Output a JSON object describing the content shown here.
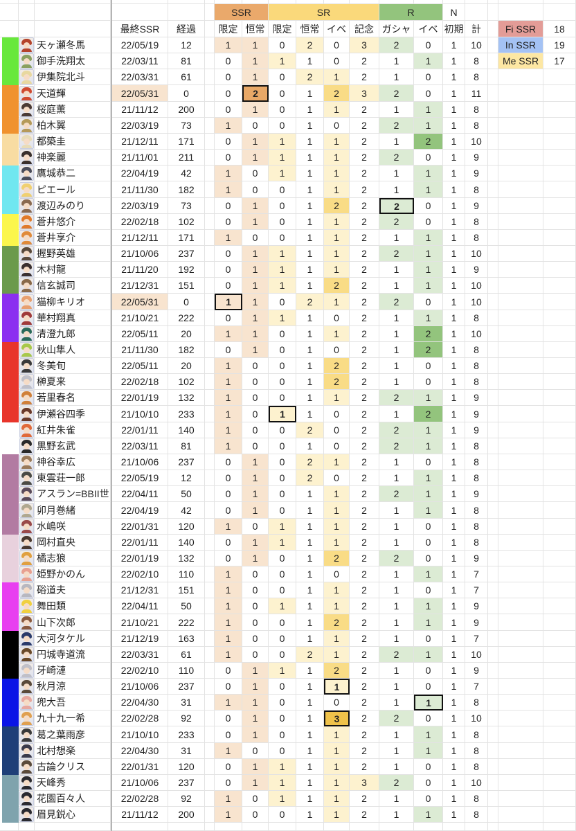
{
  "header": {
    "groups": [
      {
        "label": "SSR",
        "color": "#eaa96b"
      },
      {
        "label": "SR",
        "color": "#fad97b"
      },
      {
        "label": "R",
        "color": "#93c47d"
      },
      {
        "label": "N",
        "color": "#ffffff"
      }
    ],
    "columns": [
      "最終SSR",
      "経過",
      "限定",
      "恒常",
      "限定",
      "恒常",
      "イベ",
      "記念",
      "ガシャ",
      "イベ",
      "初期",
      "計"
    ]
  },
  "legend": [
    {
      "label": "Fi SSR",
      "value": "18",
      "color": "#e39c97"
    },
    {
      "label": "In SSR",
      "value": "19",
      "color": "#a4c2f4"
    },
    {
      "label": "Me SSR",
      "value": "17",
      "color": "#fde7a3"
    }
  ],
  "colors": {
    "ssr_1": "#f8e4cf",
    "ssr_2": "#e8a867",
    "sr_1": "#fdf2cf",
    "sr_2": "#f9dc86",
    "sr_3": "#efc24a",
    "r_1": "#dcebd4",
    "r_2": "#93c47d",
    "recent_date": "#f8e4cf"
  },
  "rows": [
    {
      "name": "天ヶ瀬冬馬",
      "date": "22/05/19",
      "days": "12",
      "values": [
        "1",
        "1",
        "0",
        "2",
        "0",
        "3",
        "2",
        "0",
        "1",
        "10"
      ],
      "color": "#68e83c",
      "hair": "#b5442c"
    },
    {
      "name": "御手洗翔太",
      "date": "22/03/11",
      "days": "81",
      "values": [
        "0",
        "1",
        "1",
        "1",
        "0",
        "2",
        "1",
        "1",
        "1",
        "8"
      ],
      "color": "#68e83c",
      "hair": "#8aa060"
    },
    {
      "name": "伊集院北斗",
      "date": "22/03/31",
      "days": "61",
      "values": [
        "0",
        "1",
        "0",
        "2",
        "1",
        "2",
        "1",
        "0",
        "1",
        "8"
      ],
      "color": "#68e83c",
      "hair": "#e8d8a0"
    },
    {
      "name": "天道輝",
      "date": "22/05/31",
      "days": "0",
      "values": [
        "0",
        "2",
        "0",
        "1",
        "2",
        "3",
        "2",
        "0",
        "1",
        "11"
      ],
      "color": "#f0922f",
      "hair": "#d04a30",
      "boxed": 1,
      "recent": true
    },
    {
      "name": "桜庭薫",
      "date": "21/11/12",
      "days": "200",
      "values": [
        "0",
        "1",
        "0",
        "1",
        "1",
        "2",
        "1",
        "1",
        "1",
        "8"
      ],
      "color": "#f0922f",
      "hair": "#4a3a34"
    },
    {
      "name": "柏木翼",
      "date": "22/03/19",
      "days": "73",
      "values": [
        "1",
        "0",
        "0",
        "1",
        "0",
        "2",
        "2",
        "1",
        "1",
        "8"
      ],
      "color": "#f0922f",
      "hair": "#b59a5a"
    },
    {
      "name": "都築圭",
      "date": "21/12/11",
      "days": "171",
      "values": [
        "0",
        "1",
        "1",
        "1",
        "1",
        "2",
        "1",
        "2",
        "1",
        "10"
      ],
      "color": "#f8dca2",
      "hair": "#e8dcb8"
    },
    {
      "name": "神楽麗",
      "date": "21/11/01",
      "days": "211",
      "values": [
        "0",
        "1",
        "1",
        "1",
        "1",
        "2",
        "2",
        "0",
        "1",
        "9"
      ],
      "color": "#f8dca2",
      "hair": "#3a302c"
    },
    {
      "name": "鷹城恭二",
      "date": "22/04/19",
      "days": "42",
      "values": [
        "1",
        "0",
        "1",
        "1",
        "1",
        "2",
        "1",
        "1",
        "1",
        "9"
      ],
      "color": "#70e7f0",
      "hair": "#4a4c5a"
    },
    {
      "name": "ピエール",
      "date": "21/11/30",
      "days": "182",
      "values": [
        "1",
        "0",
        "0",
        "1",
        "1",
        "2",
        "1",
        "1",
        "1",
        "8"
      ],
      "color": "#70e7f0",
      "hair": "#f0d070"
    },
    {
      "name": "渡辺みのり",
      "date": "22/03/19",
      "days": "73",
      "values": [
        "0",
        "1",
        "0",
        "1",
        "2",
        "2",
        "2",
        "0",
        "1",
        "9"
      ],
      "color": "#70e7f0",
      "hair": "#8a6a50",
      "boxed": 6
    },
    {
      "name": "蒼井悠介",
      "date": "22/02/18",
      "days": "102",
      "values": [
        "0",
        "1",
        "0",
        "1",
        "1",
        "2",
        "2",
        "0",
        "1",
        "8"
      ],
      "color": "#fbf64c",
      "hair": "#e07a2a"
    },
    {
      "name": "蒼井享介",
      "date": "21/12/11",
      "days": "171",
      "values": [
        "1",
        "0",
        "0",
        "1",
        "1",
        "2",
        "1",
        "1",
        "1",
        "8"
      ],
      "color": "#fbf64c",
      "hair": "#e08a3a"
    },
    {
      "name": "握野英雄",
      "date": "21/10/06",
      "days": "237",
      "values": [
        "0",
        "1",
        "1",
        "1",
        "1",
        "2",
        "2",
        "1",
        "1",
        "10"
      ],
      "color": "#6b9a4c",
      "hair": "#5a4a3c"
    },
    {
      "name": "木村龍",
      "date": "21/11/20",
      "days": "192",
      "values": [
        "0",
        "1",
        "1",
        "1",
        "1",
        "2",
        "1",
        "1",
        "1",
        "9"
      ],
      "color": "#6b9a4c",
      "hair": "#3a3030"
    },
    {
      "name": "信玄誠司",
      "date": "21/12/31",
      "days": "151",
      "values": [
        "0",
        "1",
        "1",
        "1",
        "2",
        "2",
        "1",
        "1",
        "1",
        "10"
      ],
      "color": "#6b9a4c",
      "hair": "#8a6a4a"
    },
    {
      "name": "猫柳キリオ",
      "date": "22/05/31",
      "days": "0",
      "values": [
        "1",
        "1",
        "0",
        "2",
        "1",
        "2",
        "2",
        "0",
        "1",
        "10"
      ],
      "color": "#8b2ff0",
      "hair": "#e8a070",
      "boxed": 0,
      "recent": true
    },
    {
      "name": "華村翔真",
      "date": "21/10/21",
      "days": "222",
      "values": [
        "0",
        "1",
        "1",
        "1",
        "0",
        "2",
        "1",
        "1",
        "1",
        "8"
      ],
      "color": "#8b2ff0",
      "hair": "#a03a3a"
    },
    {
      "name": "清澄九郎",
      "date": "22/05/11",
      "days": "20",
      "values": [
        "1",
        "1",
        "0",
        "1",
        "1",
        "2",
        "1",
        "2",
        "1",
        "10"
      ],
      "color": "#8b2ff0",
      "hair": "#2a6a5a"
    },
    {
      "name": "秋山隼人",
      "date": "21/11/30",
      "days": "182",
      "values": [
        "0",
        "1",
        "0",
        "1",
        "0",
        "2",
        "1",
        "2",
        "1",
        "8"
      ],
      "color": "#e8352b",
      "hair": "#a8c84a"
    },
    {
      "name": "冬美旬",
      "date": "22/05/11",
      "days": "20",
      "values": [
        "1",
        "0",
        "0",
        "1",
        "2",
        "2",
        "1",
        "0",
        "1",
        "8"
      ],
      "color": "#e8352b",
      "hair": "#3a3a3a"
    },
    {
      "name": "榊夏来",
      "date": "22/02/18",
      "days": "102",
      "values": [
        "1",
        "0",
        "0",
        "1",
        "2",
        "2",
        "1",
        "0",
        "1",
        "8"
      ],
      "color": "#e8352b",
      "hair": "#c0c0c8"
    },
    {
      "name": "若里春名",
      "date": "22/01/19",
      "days": "132",
      "values": [
        "1",
        "0",
        "0",
        "1",
        "1",
        "2",
        "2",
        "1",
        "1",
        "9"
      ],
      "color": "#e8352b",
      "hair": "#d0803a"
    },
    {
      "name": "伊瀬谷四季",
      "date": "21/10/10",
      "days": "233",
      "values": [
        "1",
        "0",
        "1",
        "1",
        "0",
        "2",
        "1",
        "2",
        "1",
        "9"
      ],
      "color": "#e8352b",
      "hair": "#6a3a2a",
      "boxed": 2
    },
    {
      "name": "紅井朱雀",
      "date": "22/01/11",
      "days": "140",
      "values": [
        "1",
        "0",
        "0",
        "2",
        "0",
        "2",
        "2",
        "1",
        "1",
        "9"
      ],
      "color": "#ffffff",
      "hair": "#e06a3a"
    },
    {
      "name": "黒野玄武",
      "date": "22/03/11",
      "days": "81",
      "values": [
        "1",
        "0",
        "0",
        "1",
        "0",
        "2",
        "2",
        "1",
        "1",
        "8"
      ],
      "color": "#ffffff",
      "hair": "#2a2a2a"
    },
    {
      "name": "神谷幸広",
      "date": "21/10/06",
      "days": "237",
      "values": [
        "0",
        "1",
        "0",
        "2",
        "1",
        "2",
        "1",
        "0",
        "1",
        "8"
      ],
      "color": "#b27ba2",
      "hair": "#9a7a5a"
    },
    {
      "name": "東雲荘一郎",
      "date": "22/05/19",
      "days": "12",
      "values": [
        "0",
        "1",
        "0",
        "2",
        "0",
        "2",
        "1",
        "1",
        "1",
        "8"
      ],
      "color": "#b27ba2",
      "hair": "#4a4a44"
    },
    {
      "name": "アスラン=BBII世",
      "date": "22/04/11",
      "days": "50",
      "values": [
        "0",
        "1",
        "0",
        "1",
        "1",
        "2",
        "2",
        "1",
        "1",
        "9"
      ],
      "color": "#b27ba2",
      "hair": "#5a4a5a"
    },
    {
      "name": "卯月巻緒",
      "date": "22/04/19",
      "days": "42",
      "values": [
        "0",
        "1",
        "0",
        "1",
        "1",
        "2",
        "1",
        "1",
        "1",
        "8"
      ],
      "color": "#b27ba2",
      "hair": "#b0a890"
    },
    {
      "name": "水嶋咲",
      "date": "22/01/31",
      "days": "120",
      "values": [
        "1",
        "0",
        "1",
        "1",
        "1",
        "2",
        "1",
        "0",
        "1",
        "8"
      ],
      "color": "#b27ba2",
      "hair": "#9a4a4a"
    },
    {
      "name": "岡村直央",
      "date": "22/01/11",
      "days": "140",
      "values": [
        "0",
        "1",
        "1",
        "1",
        "1",
        "2",
        "1",
        "0",
        "1",
        "8"
      ],
      "color": "#e8d1dd",
      "hair": "#4a3a30"
    },
    {
      "name": "橘志狼",
      "date": "22/01/19",
      "days": "132",
      "values": [
        "0",
        "1",
        "0",
        "1",
        "2",
        "2",
        "2",
        "0",
        "1",
        "9"
      ],
      "color": "#e8d1dd",
      "hair": "#e0a040"
    },
    {
      "name": "姫野かのん",
      "date": "22/02/10",
      "days": "110",
      "values": [
        "1",
        "0",
        "0",
        "1",
        "0",
        "2",
        "1",
        "1",
        "1",
        "7"
      ],
      "color": "#e8d1dd",
      "hair": "#e8a090"
    },
    {
      "name": "硲道夫",
      "date": "21/12/31",
      "days": "151",
      "values": [
        "1",
        "0",
        "0",
        "1",
        "1",
        "2",
        "1",
        "0",
        "1",
        "7"
      ],
      "color": "#e83ff0",
      "hair": "#b8b8c0"
    },
    {
      "name": "舞田類",
      "date": "22/04/11",
      "days": "50",
      "values": [
        "1",
        "0",
        "1",
        "1",
        "1",
        "2",
        "1",
        "1",
        "1",
        "9"
      ],
      "color": "#e83ff0",
      "hair": "#f0d040"
    },
    {
      "name": "山下次郎",
      "date": "21/10/21",
      "days": "222",
      "values": [
        "1",
        "0",
        "0",
        "1",
        "2",
        "2",
        "1",
        "1",
        "1",
        "9"
      ],
      "color": "#e83ff0",
      "hair": "#8a5a40"
    },
    {
      "name": "大河タケル",
      "date": "21/12/19",
      "days": "163",
      "values": [
        "1",
        "0",
        "0",
        "1",
        "1",
        "2",
        "1",
        "0",
        "1",
        "7"
      ],
      "color": "#000000",
      "hair": "#2a3a6a"
    },
    {
      "name": "円城寺道流",
      "date": "22/03/31",
      "days": "61",
      "values": [
        "1",
        "0",
        "0",
        "2",
        "1",
        "2",
        "2",
        "1",
        "1",
        "10"
      ],
      "color": "#000000",
      "hair": "#6a4a2a"
    },
    {
      "name": "牙崎漣",
      "date": "22/02/10",
      "days": "110",
      "values": [
        "0",
        "1",
        "1",
        "1",
        "2",
        "2",
        "1",
        "0",
        "1",
        "9"
      ],
      "color": "#000000",
      "hair": "#c0c0c8"
    },
    {
      "name": "秋月涼",
      "date": "21/10/06",
      "days": "237",
      "values": [
        "0",
        "1",
        "0",
        "1",
        "1",
        "2",
        "1",
        "0",
        "1",
        "7"
      ],
      "color": "#0a14e6",
      "hair": "#5a4a3a",
      "boxed": 4
    },
    {
      "name": "兜大吾",
      "date": "22/04/30",
      "days": "31",
      "values": [
        "1",
        "1",
        "0",
        "1",
        "0",
        "2",
        "1",
        "1",
        "1",
        "8"
      ],
      "color": "#0a14e6",
      "hair": "#e8a8a0",
      "boxed": 7
    },
    {
      "name": "九十九一希",
      "date": "22/02/28",
      "days": "92",
      "values": [
        "0",
        "1",
        "0",
        "1",
        "3",
        "2",
        "2",
        "0",
        "1",
        "10"
      ],
      "color": "#0a14e6",
      "hair": "#e0a050",
      "boxed": 4
    },
    {
      "name": "葛之葉雨彦",
      "date": "21/10/10",
      "days": "233",
      "values": [
        "0",
        "1",
        "0",
        "1",
        "1",
        "2",
        "1",
        "1",
        "1",
        "8"
      ],
      "color": "#1f3f78",
      "hair": "#3a3a3a"
    },
    {
      "name": "北村想楽",
      "date": "22/04/30",
      "days": "31",
      "values": [
        "1",
        "0",
        "0",
        "1",
        "1",
        "2",
        "1",
        "1",
        "1",
        "8"
      ],
      "color": "#1f3f78",
      "hair": "#3a3a4a"
    },
    {
      "name": "古論クリス",
      "date": "22/01/31",
      "days": "120",
      "values": [
        "0",
        "1",
        "1",
        "1",
        "1",
        "2",
        "1",
        "0",
        "1",
        "8"
      ],
      "color": "#1f3f78",
      "hair": "#5a4a3a"
    },
    {
      "name": "天峰秀",
      "date": "21/10/06",
      "days": "237",
      "values": [
        "0",
        "1",
        "1",
        "1",
        "1",
        "3",
        "2",
        "0",
        "1",
        "10"
      ],
      "color": "#7fa3ad",
      "hair": "#2a2a30"
    },
    {
      "name": "花園百々人",
      "date": "22/02/28",
      "days": "92",
      "values": [
        "1",
        "0",
        "1",
        "1",
        "1",
        "2",
        "1",
        "0",
        "1",
        "8"
      ],
      "color": "#7fa3ad",
      "hair": "#2a2a30"
    },
    {
      "name": "眉見鋭心",
      "date": "21/11/12",
      "days": "200",
      "values": [
        "1",
        "0",
        "0",
        "1",
        "1",
        "2",
        "1",
        "1",
        "1",
        "8"
      ],
      "color": "#7fa3ad",
      "hair": "#2a2a30"
    }
  ]
}
